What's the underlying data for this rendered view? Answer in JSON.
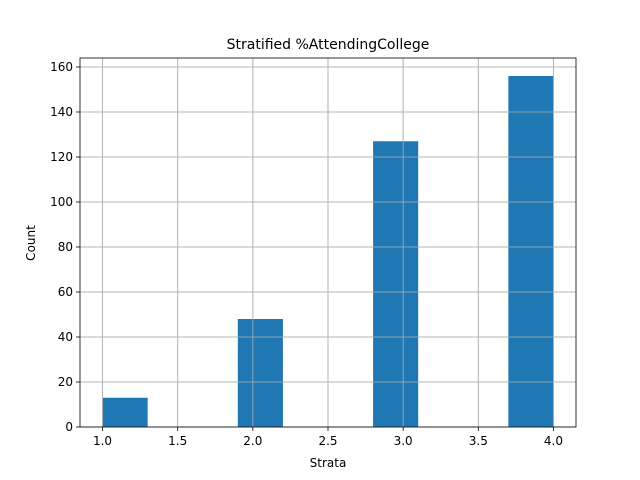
{
  "chart_data": {
    "type": "bar",
    "title": "Stratified %AttendingCollege",
    "xlabel": "Strata",
    "ylabel": "Count",
    "xlim": [
      0.85,
      4.15
    ],
    "ylim": [
      0,
      164
    ],
    "xticks": [
      1.0,
      1.5,
      2.0,
      2.5,
      3.0,
      3.5,
      4.0
    ],
    "xtick_labels": [
      "1.0",
      "1.5",
      "2.0",
      "2.5",
      "3.0",
      "3.5",
      "4.0"
    ],
    "yticks": [
      0,
      20,
      40,
      60,
      80,
      100,
      120,
      140,
      160
    ],
    "ytick_labels": [
      "0",
      "20",
      "40",
      "60",
      "80",
      "100",
      "120",
      "140",
      "160"
    ],
    "grid": true,
    "bar_color": "#1f77b4",
    "bars": [
      {
        "x_start": 1.0,
        "x_end": 1.3,
        "value": 13
      },
      {
        "x_start": 1.9,
        "x_end": 2.2,
        "value": 48
      },
      {
        "x_start": 2.8,
        "x_end": 3.1,
        "value": 127
      },
      {
        "x_start": 3.7,
        "x_end": 4.0,
        "value": 156
      }
    ]
  }
}
